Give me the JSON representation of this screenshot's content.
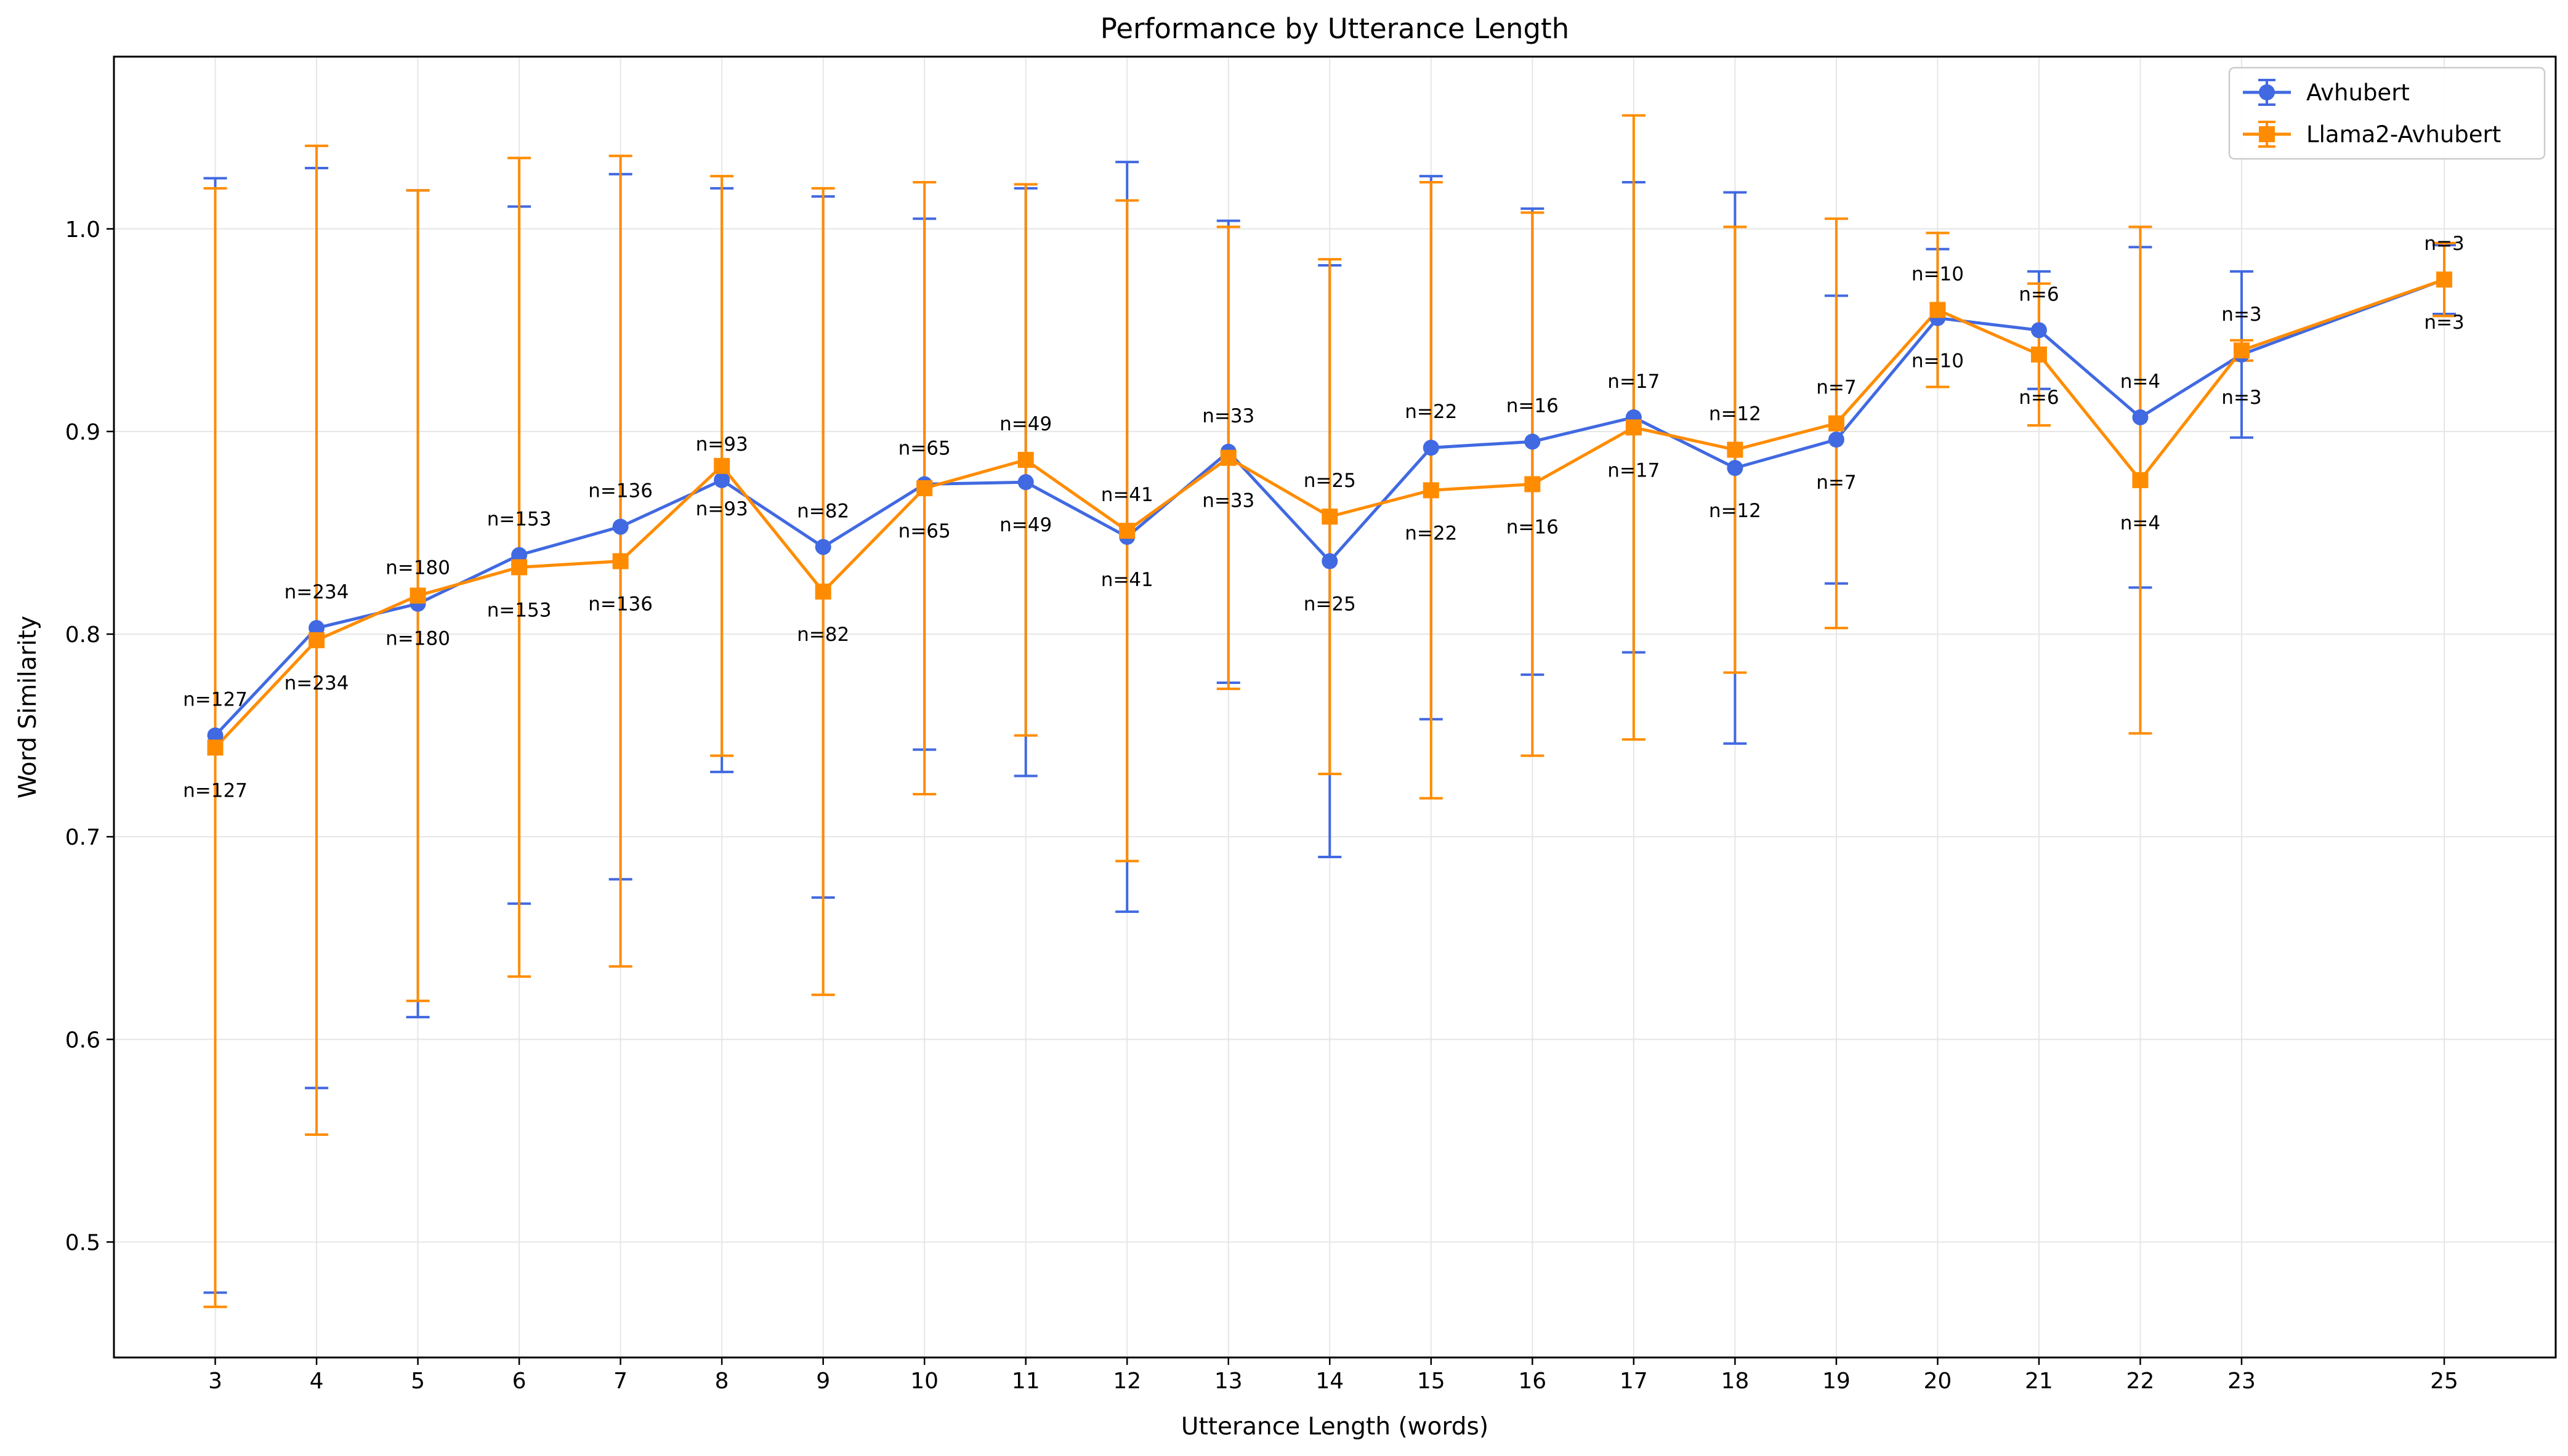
{
  "chart_data": {
    "type": "line",
    "title": "Performance by Utterance Length",
    "xlabel": "Utterance Length (words)",
    "ylabel": "Word Similarity",
    "xlim": [
      2,
      26.1
    ],
    "ylim": [
      0.443,
      1.085
    ],
    "grid": true,
    "legend_position": "top-right",
    "x_ticks": [
      3,
      4,
      5,
      6,
      7,
      8,
      9,
      10,
      11,
      12,
      13,
      14,
      15,
      16,
      17,
      18,
      19,
      20,
      21,
      22,
      23,
      25
    ],
    "y_ticks": [
      0.5,
      0.6,
      0.7,
      0.8,
      0.9,
      1.0
    ],
    "x_tick_labels": [
      "3",
      "4",
      "5",
      "6",
      "7",
      "8",
      "9",
      "10",
      "11",
      "12",
      "13",
      "14",
      "15",
      "16",
      "17",
      "18",
      "19",
      "20",
      "21",
      "22",
      "23",
      "25"
    ],
    "y_tick_labels": [
      "0.5",
      "0.6",
      "0.7",
      "0.8",
      "0.9",
      "1.0"
    ],
    "series": [
      {
        "name": "Avhubert",
        "color": "#4169e1",
        "marker": "circle",
        "x": [
          3,
          4,
          5,
          6,
          7,
          8,
          9,
          10,
          11,
          12,
          13,
          14,
          15,
          16,
          17,
          18,
          19,
          20,
          21,
          22,
          23,
          25
        ],
        "y": [
          0.75,
          0.803,
          0.815,
          0.839,
          0.853,
          0.876,
          0.843,
          0.874,
          0.875,
          0.848,
          0.89,
          0.836,
          0.892,
          0.895,
          0.907,
          0.882,
          0.896,
          0.956,
          0.95,
          0.907,
          0.938,
          0.975
        ],
        "err": [
          0.275,
          0.227,
          0.204,
          0.172,
          0.174,
          0.144,
          0.173,
          0.131,
          0.145,
          0.185,
          0.114,
          0.146,
          0.134,
          0.115,
          0.116,
          0.136,
          0.071,
          0.034,
          0.029,
          0.084,
          0.041,
          0.017
        ],
        "n_labels": [
          "n=127",
          "n=234",
          "n=180",
          "n=153",
          "n=136",
          "n=93",
          "n=82",
          "n=65",
          "n=49",
          "n=41",
          "n=33",
          "n=25",
          "n=22",
          "n=16",
          "n=17",
          "n=12",
          "n=7",
          "n=10",
          "n=6",
          "n=4",
          "n=3",
          "n=3"
        ]
      },
      {
        "name": "Llama2-Avhubert",
        "color": "#ff8c00",
        "marker": "square",
        "x": [
          3,
          4,
          5,
          6,
          7,
          8,
          9,
          10,
          11,
          12,
          13,
          14,
          15,
          16,
          17,
          18,
          19,
          20,
          21,
          22,
          23,
          25
        ],
        "y": [
          0.744,
          0.797,
          0.819,
          0.833,
          0.836,
          0.883,
          0.821,
          0.872,
          0.886,
          0.851,
          0.887,
          0.858,
          0.871,
          0.874,
          0.902,
          0.891,
          0.904,
          0.96,
          0.938,
          0.876,
          0.94,
          0.975
        ],
        "err": [
          0.276,
          0.244,
          0.2,
          0.202,
          0.2,
          0.143,
          0.199,
          0.151,
          0.136,
          0.163,
          0.114,
          0.127,
          0.152,
          0.134,
          0.154,
          0.11,
          0.101,
          0.038,
          0.035,
          0.125,
          0.005,
          0.018
        ],
        "n_labels": [
          "n=127",
          "n=234",
          "n=180",
          "n=153",
          "n=136",
          "n=93",
          "n=82",
          "n=65",
          "n=49",
          "n=41",
          "n=33",
          "n=25",
          "n=22",
          "n=16",
          "n=17",
          "n=12",
          "n=7",
          "n=10",
          "n=6",
          "n=4",
          "n=3",
          "n=3"
        ]
      }
    ],
    "n_label_placement": [
      [
        "above",
        "below"
      ],
      [
        "above",
        "below"
      ],
      [
        "above",
        "below"
      ],
      [
        "above",
        "below"
      ],
      [
        "above",
        "below"
      ],
      [
        "above",
        "below"
      ],
      [
        "above",
        "below"
      ],
      [
        "above",
        "below"
      ],
      [
        "below",
        "above"
      ],
      [
        "below",
        "above"
      ],
      [
        "above",
        "below"
      ],
      [
        "below",
        "above"
      ],
      [
        "above",
        "below"
      ],
      [
        "above",
        "below"
      ],
      [
        "above",
        "below"
      ],
      [
        "below",
        "above"
      ],
      [
        "below",
        "above"
      ],
      [
        "below",
        "above"
      ],
      [
        "above",
        "below"
      ],
      [
        "above",
        "below"
      ],
      [
        "below",
        "above"
      ],
      [
        "above",
        "below"
      ]
    ]
  }
}
